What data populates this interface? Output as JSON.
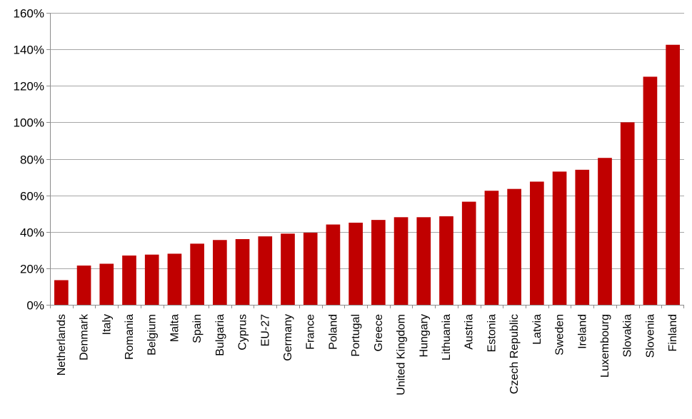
{
  "chart_data": {
    "type": "bar",
    "title": "",
    "xlabel": "",
    "ylabel": "",
    "ylim": [
      0,
      160
    ],
    "y_tick_values": [
      0,
      20,
      40,
      60,
      80,
      100,
      120,
      140,
      160
    ],
    "y_tick_labels": [
      "0%",
      "20%",
      "40%",
      "60%",
      "80%",
      "100%",
      "120%",
      "140%",
      "160%"
    ],
    "grid": true,
    "legend": "none",
    "bar_color": "#c00000",
    "categories": [
      "Netherlands",
      "Denmark",
      "Italy",
      "Romania",
      "Belgium",
      "Malta",
      "Spain",
      "Bulgaria",
      "Cyprus",
      "EU-27",
      "Germany",
      "France",
      "Poland",
      "Portugal",
      "Greece",
      "United Kingdom",
      "Hungary",
      "Lithuania",
      "Austria",
      "Estonia",
      "Czech Republic",
      "Latvia",
      "Sweden",
      "Ireland",
      "Luxembourg",
      "Slovakia",
      "Slovenia",
      "Finland"
    ],
    "values": [
      13.5,
      21.5,
      22.5,
      27,
      27.5,
      28,
      33.5,
      35.5,
      36,
      37.5,
      39,
      39.5,
      44,
      45,
      46.5,
      48,
      48,
      48.5,
      56.5,
      62.5,
      63.5,
      67.5,
      73,
      74,
      80.5,
      100,
      125,
      142.5
    ]
  }
}
